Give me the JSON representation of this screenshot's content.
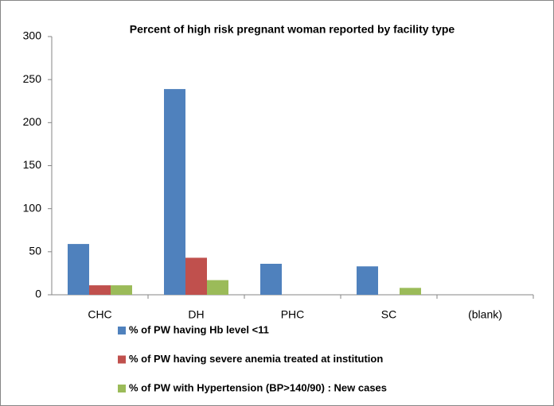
{
  "chart_data": {
    "type": "bar",
    "title": "Percent of high risk pregnant woman reported by facility type",
    "categories": [
      "CHC",
      "DH",
      "PHC",
      "SC",
      "(blank)"
    ],
    "series": [
      {
        "name": "% of PW having Hb level <11",
        "color": "#4f81bd",
        "values": [
          59,
          239,
          36,
          33,
          null
        ]
      },
      {
        "name": "% of PW having severe anemia treated at institution",
        "color": "#c0504d",
        "values": [
          11,
          43,
          0,
          0,
          null
        ]
      },
      {
        "name": "% of PW with Hypertension (BP>140/90) : New cases",
        "color": "#9bbb59",
        "values": [
          11,
          17,
          0,
          8,
          null
        ]
      }
    ],
    "ylim": [
      0,
      300
    ],
    "yticks": [
      0,
      50,
      100,
      150,
      200,
      250,
      300
    ],
    "grid": false,
    "legend": "bottom"
  }
}
